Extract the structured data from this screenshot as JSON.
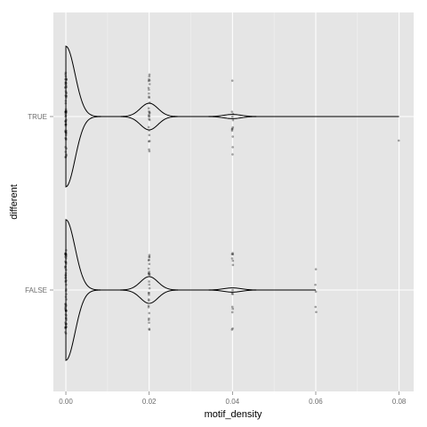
{
  "chart_data": {
    "type": "violin",
    "title": "",
    "xlabel": "motif_density",
    "ylabel": "different",
    "xlim": [
      -0.003,
      0.0835
    ],
    "x_ticks": [
      0.0,
      0.02,
      0.04,
      0.06,
      0.08
    ],
    "x_tick_labels": [
      "0.00",
      "0.02",
      "0.04",
      "0.06",
      "0.08"
    ],
    "categories": [
      "FALSE",
      "TRUE"
    ],
    "grid": true,
    "legend": "none",
    "series": [
      {
        "category": "TRUE",
        "values_present": [
          0.0,
          0.02,
          0.04,
          0.08
        ],
        "points": [
          {
            "x": 0.0,
            "count": 60
          },
          {
            "x": 0.02,
            "count": 28
          },
          {
            "x": 0.04,
            "count": 12
          },
          {
            "x": 0.08,
            "count": 1
          }
        ],
        "density_peaks": [
          {
            "x": 0.0,
            "relative_width": 1.0
          },
          {
            "x": 0.02,
            "relative_width": 0.19
          },
          {
            "x": 0.04,
            "relative_width": 0.03
          }
        ],
        "range": [
          0.0,
          0.08
        ]
      },
      {
        "category": "FALSE",
        "values_present": [
          0.0,
          0.02,
          0.04,
          0.06
        ],
        "points": [
          {
            "x": 0.0,
            "count": 60
          },
          {
            "x": 0.02,
            "count": 28
          },
          {
            "x": 0.04,
            "count": 14
          },
          {
            "x": 0.06,
            "count": 5
          }
        ],
        "density_peaks": [
          {
            "x": 0.0,
            "relative_width": 1.0
          },
          {
            "x": 0.02,
            "relative_width": 0.19
          },
          {
            "x": 0.04,
            "relative_width": 0.03
          }
        ],
        "range": [
          0.0,
          0.06
        ]
      }
    ]
  }
}
